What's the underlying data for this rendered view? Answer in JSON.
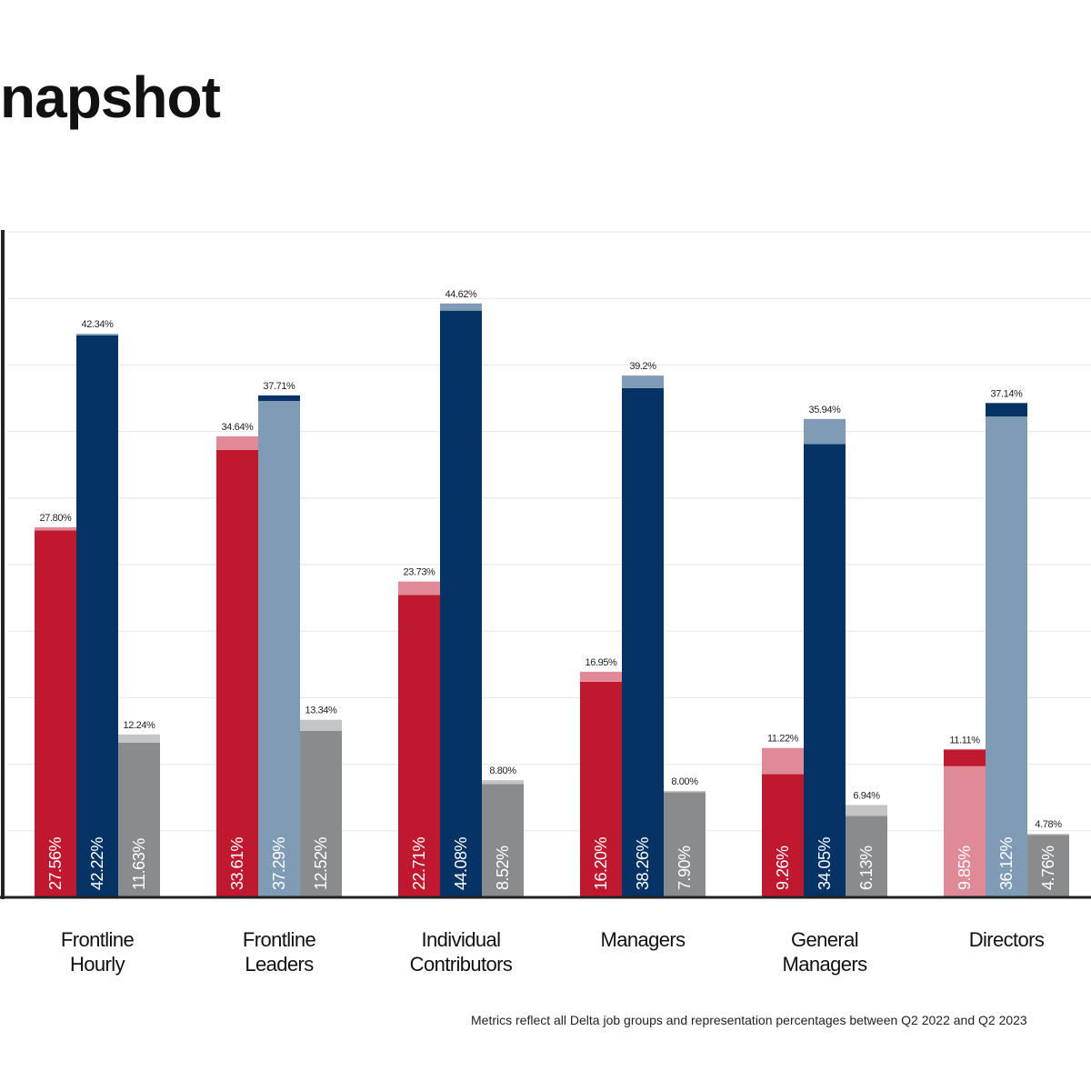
{
  "title": "napshot",
  "footnote": "Metrics reflect all Delta job groups and representation percentages between Q2 2022 and Q2 2023",
  "colors": {
    "red": "#c0192f",
    "red_light": "#e08a97",
    "navy": "#063366",
    "steel": "#7f9bb5",
    "gray": "#898b8d",
    "gray_light": "#c4c5c6",
    "axis": "#222222",
    "grid": "#e6e6e6"
  },
  "chart_data": {
    "type": "bar",
    "categories": [
      {
        "label": "Frontline Hourly",
        "lines": [
          "Frontline",
          "Hourly"
        ]
      },
      {
        "label": "Frontline Leaders",
        "lines": [
          "Frontline",
          "Leaders"
        ]
      },
      {
        "label": "Individual Contributors",
        "lines": [
          "Individual",
          "Contributors"
        ]
      },
      {
        "label": "Managers",
        "lines": [
          "Managers"
        ]
      },
      {
        "label": "General Managers",
        "lines": [
          "General",
          "Managers"
        ]
      },
      {
        "label": "Directors",
        "lines": [
          "Directors"
        ]
      }
    ],
    "groups": [
      {
        "bars": [
          {
            "inner": "27.56%",
            "outer": "27.80%",
            "inner_value": 27.56,
            "outer_value": 27.8,
            "base": "red",
            "top": "red_light"
          },
          {
            "inner": "42.22%",
            "outer": "42.34%",
            "inner_value": 42.22,
            "outer_value": 42.34,
            "base": "navy",
            "top": "steel"
          },
          {
            "inner": "11.63%",
            "outer": "12.24%",
            "inner_value": 11.63,
            "outer_value": 12.24,
            "base": "gray",
            "top": "gray_light"
          }
        ]
      },
      {
        "bars": [
          {
            "inner": "33.61%",
            "outer": "34.64%",
            "inner_value": 33.61,
            "outer_value": 34.64,
            "base": "red",
            "top": "red_light"
          },
          {
            "inner": "37.29%",
            "outer": "37.71%",
            "inner_value": 37.29,
            "outer_value": 37.71,
            "base": "steel",
            "top": "navy"
          },
          {
            "inner": "12.52%",
            "outer": "13.34%",
            "inner_value": 12.52,
            "outer_value": 13.34,
            "base": "gray",
            "top": "gray_light"
          }
        ]
      },
      {
        "bars": [
          {
            "inner": "22.71%",
            "outer": "23.73%",
            "inner_value": 22.71,
            "outer_value": 23.73,
            "base": "red",
            "top": "red_light"
          },
          {
            "inner": "44.08%",
            "outer": "44.62%",
            "inner_value": 44.08,
            "outer_value": 44.62,
            "base": "navy",
            "top": "steel"
          },
          {
            "inner": "8.52%",
            "outer": "8.80%",
            "inner_value": 8.52,
            "outer_value": 8.8,
            "base": "gray",
            "top": "gray_light"
          }
        ]
      },
      {
        "bars": [
          {
            "inner": "16.20%",
            "outer": "16.95%",
            "inner_value": 16.2,
            "outer_value": 16.95,
            "base": "red",
            "top": "red_light"
          },
          {
            "inner": "38.26%",
            "outer": "39.2%",
            "inner_value": 38.26,
            "outer_value": 39.2,
            "base": "navy",
            "top": "steel"
          },
          {
            "inner": "7.90%",
            "outer": "8.00%",
            "inner_value": 7.9,
            "outer_value": 8.0,
            "base": "gray",
            "top": "gray_light"
          }
        ]
      },
      {
        "bars": [
          {
            "inner": "9.26%",
            "outer": "11.22%",
            "inner_value": 9.26,
            "outer_value": 11.22,
            "base": "red",
            "top": "red_light"
          },
          {
            "inner": "34.05%",
            "outer": "35.94%",
            "inner_value": 34.05,
            "outer_value": 35.94,
            "base": "navy",
            "top": "steel"
          },
          {
            "inner": "6.13%",
            "outer": "6.94%",
            "inner_value": 6.13,
            "outer_value": 6.94,
            "base": "gray",
            "top": "gray_light"
          }
        ]
      },
      {
        "bars": [
          {
            "inner": "9.85%",
            "outer": "11.11%",
            "inner_value": 9.85,
            "outer_value": 11.11,
            "base": "red_light",
            "top": "red"
          },
          {
            "inner": "36.12%",
            "outer": "37.14%",
            "inner_value": 36.12,
            "outer_value": 37.14,
            "base": "steel",
            "top": "navy"
          },
          {
            "inner": "4.76%",
            "outer": "4.78%",
            "inner_value": 4.76,
            "outer_value": 4.78,
            "base": "gray",
            "top": "gray_light"
          }
        ]
      }
    ],
    "ylim": [
      0,
      50
    ],
    "grid": true,
    "xlabel": "",
    "ylabel": ""
  }
}
